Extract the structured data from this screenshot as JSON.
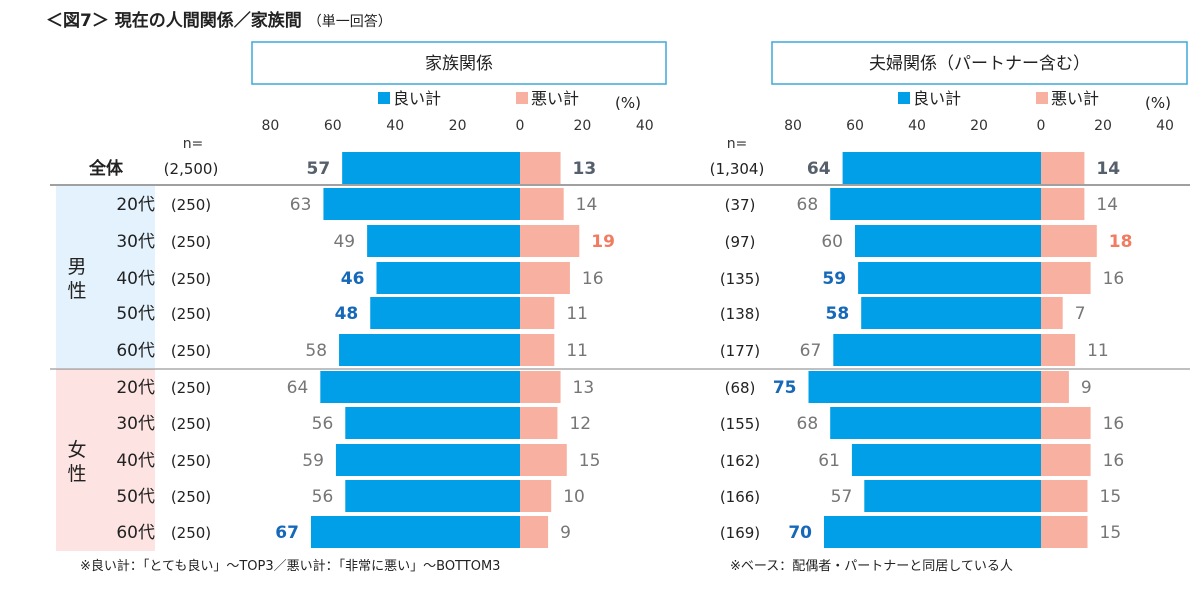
{
  "figure_title": "＜図7＞ 現在の人間関係／家族間",
  "figure_subtitle": "（単一回答）",
  "colors": {
    "good": "#009FE8",
    "bad": "#F8B0A0",
    "divider": "#808080",
    "panel_border": "#3FA7D8",
    "male_bg": "#E3F2FC",
    "female_bg": "#FDE4E2",
    "highlight_high": "#1668B8",
    "highlight_low": "#F17C62"
  },
  "row_header_n": "n=",
  "rows": [
    {
      "label": "全体"
    },
    {
      "group": "男性",
      "label": "20代"
    },
    {
      "group": "男性",
      "label": "30代"
    },
    {
      "group": "男性",
      "label": "40代"
    },
    {
      "group": "男性",
      "label": "50代"
    },
    {
      "group": "男性",
      "label": "60代"
    },
    {
      "group": "女性",
      "label": "20代"
    },
    {
      "group": "女性",
      "label": "30代"
    },
    {
      "group": "女性",
      "label": "40代"
    },
    {
      "group": "女性",
      "label": "50代"
    },
    {
      "group": "女性",
      "label": "60代"
    }
  ],
  "groups": [
    {
      "name": "男性",
      "rows": [
        1,
        5
      ]
    },
    {
      "name": "女性",
      "rows": [
        6,
        10
      ]
    }
  ],
  "chart_data": [
    {
      "type": "bar",
      "orientation": "horizontal-diverging",
      "title": "家族関係",
      "unit_label": "(%)",
      "n_label": "n=",
      "axis_ticks": [
        "80",
        "60",
        "40",
        "20",
        "0",
        "20",
        "40"
      ],
      "xlim": [
        -80,
        40
      ],
      "categories": [
        "全体",
        "男性20代",
        "男性30代",
        "男性40代",
        "男性50代",
        "男性60代",
        "女性20代",
        "女性30代",
        "女性40代",
        "女性50代",
        "女性60代"
      ],
      "n": [
        "(2,500)",
        "(250)",
        "(250)",
        "(250)",
        "(250)",
        "(250)",
        "(250)",
        "(250)",
        "(250)",
        "(250)",
        "(250)"
      ],
      "series": [
        {
          "name": "良い計",
          "values": [
            57,
            63,
            49,
            46,
            48,
            58,
            64,
            56,
            59,
            56,
            67
          ],
          "highlight": [
            "total",
            "",
            "",
            "low",
            "low",
            "",
            "",
            "",
            "",
            "",
            "high"
          ]
        },
        {
          "name": "悪い計",
          "values": [
            13,
            14,
            19,
            16,
            11,
            11,
            13,
            12,
            15,
            10,
            9
          ],
          "highlight": [
            "total",
            "",
            "high",
            "",
            "",
            "",
            "",
            "",
            "",
            "",
            ""
          ]
        }
      ]
    },
    {
      "type": "bar",
      "orientation": "horizontal-diverging",
      "title": "夫婦関係（パートナー含む）",
      "unit_label": "(%)",
      "n_label": "n=",
      "axis_ticks": [
        "80",
        "60",
        "40",
        "20",
        "0",
        "20",
        "40"
      ],
      "xlim": [
        -80,
        40
      ],
      "categories": [
        "全体",
        "男性20代",
        "男性30代",
        "男性40代",
        "男性50代",
        "男性60代",
        "女性20代",
        "女性30代",
        "女性40代",
        "女性50代",
        "女性60代"
      ],
      "n": [
        "(1,304)",
        "(37)",
        "(97)",
        "(135)",
        "(138)",
        "(177)",
        "(68)",
        "(155)",
        "(162)",
        "(166)",
        "(169)"
      ],
      "series": [
        {
          "name": "良い計",
          "values": [
            64,
            68,
            60,
            59,
            58,
            67,
            75,
            68,
            61,
            57,
            70
          ],
          "highlight": [
            "total",
            "",
            "",
            "low",
            "low",
            "",
            "high",
            "",
            "",
            "",
            "high"
          ]
        },
        {
          "name": "悪い計",
          "values": [
            14,
            14,
            18,
            16,
            7,
            11,
            9,
            16,
            16,
            15,
            15
          ],
          "highlight": [
            "total",
            "",
            "high",
            "",
            "",
            "",
            "",
            "",
            "",
            "",
            ""
          ]
        }
      ]
    }
  ],
  "footnotes": {
    "left": "※良い計：「とても良い」～TOP3／悪い計：「非常に悪い」～BOTTOM3",
    "right": "※ベース：配偶者・パートナーと同居している人"
  }
}
